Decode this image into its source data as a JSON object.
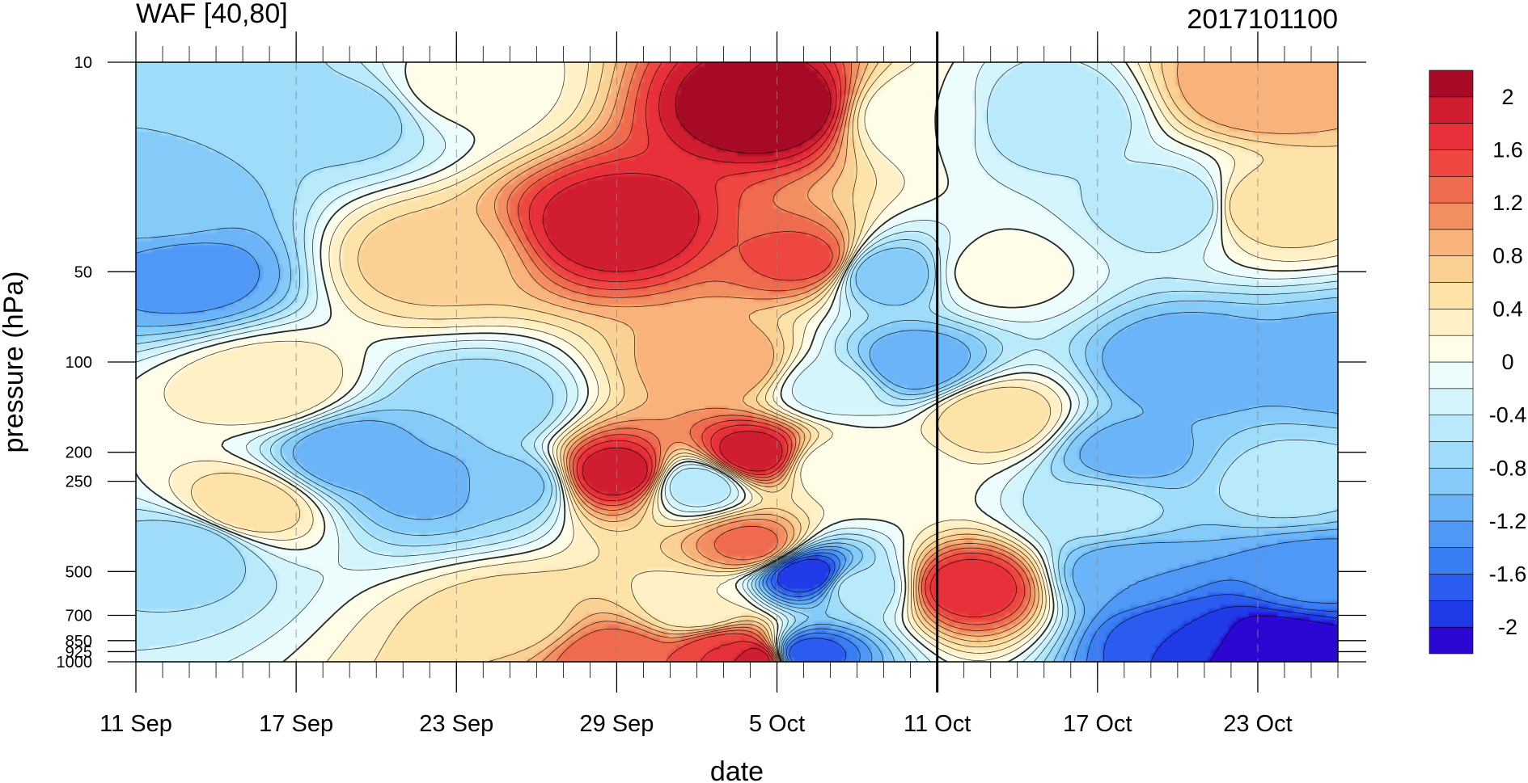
{
  "chart_data": {
    "type": "heatmap",
    "subtype": "filled-contour",
    "title_left": "WAF [40,80]",
    "title_right": "2017101100",
    "xlabel": "date",
    "ylabel": "pressure (hPa)",
    "x_start": "2017-09-11",
    "x_end": "2017-10-26",
    "x_ticks": [
      {
        "date": "2017-09-11",
        "label": "11 Sep"
      },
      {
        "date": "2017-09-17",
        "label": "17 Sep"
      },
      {
        "date": "2017-09-23",
        "label": "23 Sep"
      },
      {
        "date": "2017-09-29",
        "label": "29 Sep"
      },
      {
        "date": "2017-10-05",
        "label": "5 Oct"
      },
      {
        "date": "2017-10-11",
        "label": "11 Oct"
      },
      {
        "date": "2017-10-17",
        "label": "17 Oct"
      },
      {
        "date": "2017-10-23",
        "label": "23 Oct"
      }
    ],
    "reference_date": "2017-10-11",
    "y_scale": "log",
    "y_reversed": true,
    "ylim": [
      1000,
      10
    ],
    "y_ticks": [
      {
        "value": 10,
        "label": "10"
      },
      {
        "value": 50,
        "label": "50"
      },
      {
        "value": 100,
        "label": "100"
      },
      {
        "value": 200,
        "label": "200"
      },
      {
        "value": 250,
        "label": "250"
      },
      {
        "value": 500,
        "label": "500"
      },
      {
        "value": 700,
        "label": "700"
      },
      {
        "value": 850,
        "label": "850"
      },
      {
        "value": 925,
        "label": "925"
      },
      {
        "value": 1000,
        "label": "1000"
      }
    ],
    "grid": "dashed vertical lines at date ticks",
    "colorbar": {
      "placement": "right",
      "levels": [
        -2.2,
        -2,
        -1.8,
        -1.6,
        -1.4,
        -1.2,
        -1,
        -0.8,
        -0.6,
        -0.4,
        -0.2,
        0,
        0.2,
        0.4,
        0.6,
        0.8,
        1,
        1.2,
        1.4,
        1.6,
        1.8,
        2,
        2.2
      ],
      "labels": [
        "-2",
        "-1.6",
        "-1.2",
        "-0.8",
        "-0.4",
        "0",
        "0.4",
        "0.8",
        "1.2",
        "1.6",
        "2"
      ],
      "colors": [
        "#2c07d4",
        "#1f3ae6",
        "#2a5cf0",
        "#3a7ef3",
        "#4f98f5",
        "#6bb4f8",
        "#84cbf9",
        "#9edcfa",
        "#b8eafb",
        "#d4f5fc",
        "#edfdfe",
        "#fffde8",
        "#fff0c6",
        "#fde3a8",
        "#fbd193",
        "#f8b27a",
        "#f38e61",
        "#f06a4e",
        "#ee4640",
        "#e8303a",
        "#d01e30",
        "#a60a26"
      ]
    },
    "centers": [
      {
        "date": "2017-09-13",
        "p": 50,
        "value": -1.3
      },
      {
        "date": "2017-09-12",
        "p": 30,
        "value": -0.9
      },
      {
        "date": "2017-09-14",
        "p": 12,
        "value": -0.8
      },
      {
        "date": "2017-09-13",
        "p": 400,
        "value": -0.8
      },
      {
        "date": "2017-09-15",
        "p": 300,
        "value": 0.6
      },
      {
        "date": "2017-09-16",
        "p": 120,
        "value": 0.4
      },
      {
        "date": "2017-09-19",
        "p": 200,
        "value": -1.2
      },
      {
        "date": "2017-09-19",
        "p": 15,
        "value": -0.7
      },
      {
        "date": "2017-09-22",
        "p": 45,
        "value": 0.7
      },
      {
        "date": "2017-09-22",
        "p": 250,
        "value": -1.1
      },
      {
        "date": "2017-09-24",
        "p": 140,
        "value": -0.8
      },
      {
        "date": "2017-09-25",
        "p": 250,
        "value": -0.9
      },
      {
        "date": "2017-09-23",
        "p": 12,
        "value": 0.1
      },
      {
        "date": "2017-09-25",
        "p": 700,
        "value": 0.5
      },
      {
        "date": "2017-09-29",
        "p": 35,
        "value": 2.0
      },
      {
        "date": "2017-09-29",
        "p": 230,
        "value": 2.0
      },
      {
        "date": "2017-09-29",
        "p": 950,
        "value": 1.4
      },
      {
        "date": "2017-10-02",
        "p": 250,
        "value": -0.6
      },
      {
        "date": "2017-10-02",
        "p": 650,
        "value": 0.2
      },
      {
        "date": "2017-10-03",
        "p": 100,
        "value": 1.0
      },
      {
        "date": "2017-10-03",
        "p": 900,
        "value": 1.6
      },
      {
        "date": "2017-10-04",
        "p": 200,
        "value": 2.0
      },
      {
        "date": "2017-10-04",
        "p": 960,
        "value": 2.0
      },
      {
        "date": "2017-10-04",
        "p": 400,
        "value": 1.3
      },
      {
        "date": "2017-10-05",
        "p": 14,
        "value": 2.3
      },
      {
        "date": "2017-10-06",
        "p": 45,
        "value": 1.5
      },
      {
        "date": "2017-10-06",
        "p": 500,
        "value": -2.0
      },
      {
        "date": "2017-10-06",
        "p": 920,
        "value": -1.8
      },
      {
        "date": "2017-10-07",
        "p": 220,
        "value": 0.0
      },
      {
        "date": "2017-10-07",
        "p": 120,
        "value": -0.3
      },
      {
        "date": "2017-10-09",
        "p": 50,
        "value": -1.0
      },
      {
        "date": "2017-10-10",
        "p": 100,
        "value": -1.2
      },
      {
        "date": "2017-10-08",
        "p": 550,
        "value": -0.5
      },
      {
        "date": "2017-10-09",
        "p": 230,
        "value": 0.1
      },
      {
        "date": "2017-10-10",
        "p": 15,
        "value": 0.0
      },
      {
        "date": "2017-10-12",
        "p": 550,
        "value": 1.8
      },
      {
        "date": "2017-10-13",
        "p": 150,
        "value": 0.6
      },
      {
        "date": "2017-10-13",
        "p": 50,
        "value": 0.1
      },
      {
        "date": "2017-10-15",
        "p": 15,
        "value": -0.6
      },
      {
        "date": "2017-10-20",
        "p": 100,
        "value": -1.2
      },
      {
        "date": "2017-10-18",
        "p": 200,
        "value": -1.1
      },
      {
        "date": "2017-10-20",
        "p": 30,
        "value": -0.6
      },
      {
        "date": "2017-10-18",
        "p": 500,
        "value": -1.2
      },
      {
        "date": "2017-10-20",
        "p": 800,
        "value": -1.8
      },
      {
        "date": "2017-10-23",
        "p": 900,
        "value": -2.2
      },
      {
        "date": "2017-10-24",
        "p": 920,
        "value": -2.2
      },
      {
        "date": "2017-10-23",
        "p": 12,
        "value": 1.0
      },
      {
        "date": "2017-10-23",
        "p": 30,
        "value": 0.6
      },
      {
        "date": "2017-10-26",
        "p": 100,
        "value": -1.1
      },
      {
        "date": "2017-10-24",
        "p": 250,
        "value": -0.5
      },
      {
        "date": "2017-10-17",
        "p": 300,
        "value": -0.5
      },
      {
        "date": "2017-10-25",
        "p": 500,
        "value": -1.3
      }
    ]
  }
}
